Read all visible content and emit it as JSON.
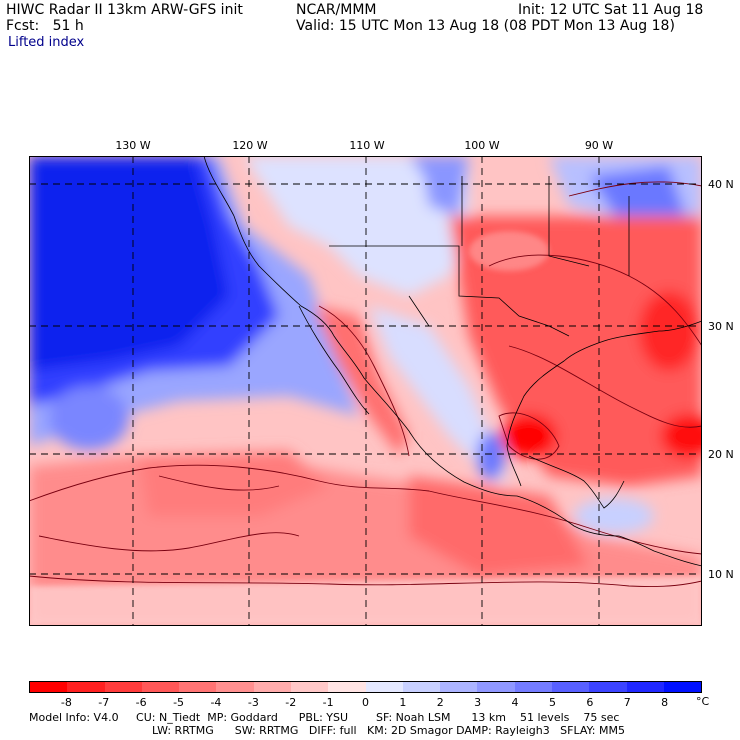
{
  "header": {
    "title_left": "HIWC Radar II 13km ARW-GFS init",
    "title_mid": "NCAR/MMM",
    "init": "Init: 12 UTC Sat 11 Aug 18",
    "fcst": "Fcst:   51 h",
    "valid": "Valid: 15 UTC Mon 13 Aug 18 (08 PDT Mon 13 Aug 18)",
    "field": "Lifted index"
  },
  "map": {
    "lon_labels": [
      "130 W",
      "120 W",
      "110 W",
      "100 W",
      "90 W"
    ],
    "lat_labels": [
      "40 N",
      "30 N",
      "20 N",
      "10 N"
    ]
  },
  "colorbar": {
    "ticks": [
      "-8",
      "-7",
      "-6",
      "-5",
      "-4",
      "-3",
      "-2",
      "-1",
      "0",
      "1",
      "2",
      "3",
      "4",
      "5",
      "6",
      "7",
      "8"
    ],
    "unit": "°C",
    "colors": [
      "#ff0000",
      "#ff2020",
      "#ff3c3c",
      "#ff5858",
      "#ff7474",
      "#ff9090",
      "#ffacac",
      "#ffc8c8",
      "#ffe4e4",
      "#e4e8ff",
      "#c8d0ff",
      "#acb4ff",
      "#9098ff",
      "#747cff",
      "#5860ff",
      "#3c44ff",
      "#2028ff",
      "#0010ff"
    ]
  },
  "footer": {
    "line1": "Model Info: V4.0     CU: N_Tiedt  MP: Goddard      PBL: YSU        SF: Noah LSM      13 km    51 levels    75 sec",
    "line2": "LW: RRTMG      SW: RRTMG   DIFF: full   KM: 2D Smagor DAMP: Rayleigh3   SFLAY: MM5"
  }
}
